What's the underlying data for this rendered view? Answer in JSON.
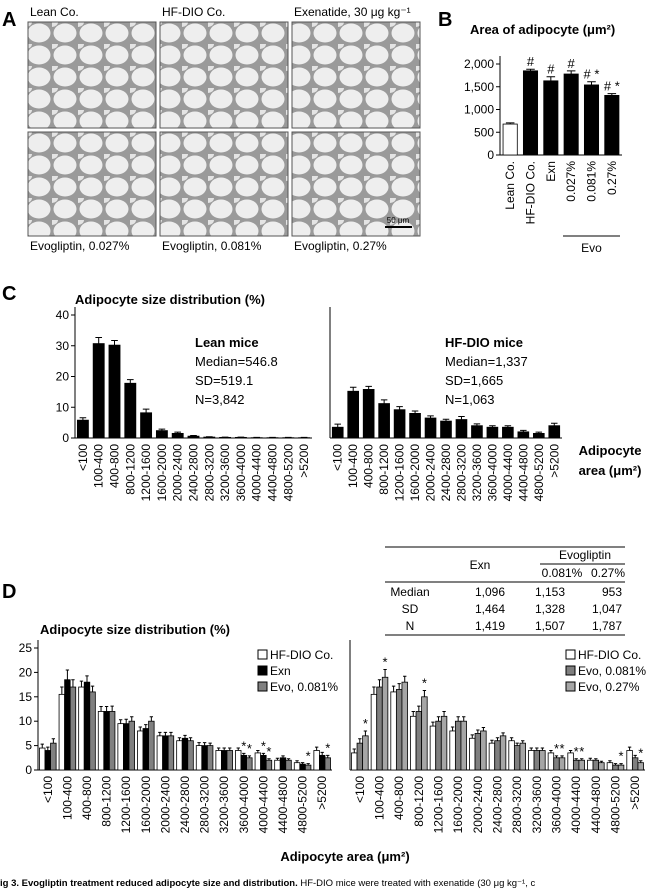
{
  "panel_labels": [
    "A",
    "B",
    "C",
    "D"
  ],
  "micrographs": {
    "labels": [
      "Lean Co.",
      "HF-DIO Co.",
      "Exenatide, 30 μg kg⁻¹",
      "Evogliptin, 0.027%",
      "Evogliptin, 0.081%",
      "Evogliptin, 0.27%"
    ],
    "scale_bar": "50 μm"
  },
  "chart_data": [
    {
      "type": "bar",
      "title": "Area of adipocyte (μm²)",
      "categories": [
        "Lean Co.",
        "HF-DIO Co.",
        "Exn",
        "0.027%",
        "0.081%",
        "0.27%"
      ],
      "values": [
        680,
        1850,
        1630,
        1780,
        1540,
        1310
      ],
      "errors": [
        25,
        35,
        90,
        70,
        70,
        40
      ],
      "colors": [
        "#ffffff",
        "#000000",
        "#000000",
        "#000000",
        "#000000",
        "#000000"
      ],
      "markers": [
        null,
        "#",
        "#",
        "#",
        "# *",
        "# *"
      ],
      "group_label": "Evo",
      "ylim": [
        0,
        2000
      ],
      "yticks": [
        0,
        500,
        {
          "value": 1000,
          "label": "1,000"
        },
        {
          "value": 1500,
          "label": "1,500"
        },
        {
          "value": 2000,
          "label": "2,000"
        }
      ]
    },
    {
      "type": "bar",
      "ylabel": "Adipocyte size distribution (%)",
      "categories": [
        "<100",
        "100-400",
        "400-800",
        "800-1200",
        "1200-1600",
        "1600-2000",
        "2000-2400",
        "2400-2800",
        "2800-3200",
        "3200-3600",
        "3600-4000",
        "4000-4400",
        "4400-4800",
        "4800-5200",
        ">5200"
      ],
      "values": [
        5.8,
        30.7,
        30.2,
        17.8,
        8.2,
        2.4,
        1.5,
        0.6,
        0.3,
        0.2,
        0.2,
        0.1,
        0.1,
        0.1,
        0.1
      ],
      "errors": [
        0.8,
        2,
        1.5,
        1.2,
        1.2,
        0.5,
        0.4,
        0.2,
        0.1,
        0.1,
        0.1,
        0.1,
        0.1,
        0.1,
        0.1
      ],
      "color": "#000000",
      "annotations": [
        "Lean mice",
        "Median=546.8",
        "SD=519.1",
        "N=3,842"
      ],
      "ylim": [
        0,
        40
      ],
      "yticks": [
        0,
        10,
        20,
        30,
        40
      ]
    },
    {
      "type": "bar",
      "xlabel": [
        "Adipocyte",
        "area (μm²)"
      ],
      "categories": [
        "<100",
        "100-400",
        "400-800",
        "800-1200",
        "1200-1600",
        "1600-2000",
        "2000-2400",
        "2400-2800",
        "2800-3200",
        "3200-3600",
        "3600-4000",
        "4000-4400",
        "4400-4800",
        "4800-5200",
        ">5200"
      ],
      "values": [
        3.5,
        15.2,
        15.8,
        11.2,
        9.2,
        8.0,
        6.5,
        5.5,
        6.0,
        4.0,
        3.5,
        3.5,
        2.0,
        1.5,
        4.0
      ],
      "errors": [
        1,
        1.3,
        1,
        1.2,
        1,
        0.8,
        0.7,
        0.6,
        1,
        0.6,
        0.5,
        0.5,
        0.5,
        0.4,
        0.8
      ],
      "color": "#000000",
      "annotations": [
        "HF-DIO mice",
        "Median=1,337",
        "SD=1,665",
        "N=1,063"
      ],
      "ylim": [
        0,
        40
      ]
    },
    {
      "type": "bar",
      "ylabel": "Adipocyte size distribution (%)",
      "categories": [
        "<100",
        "100-400",
        "400-800",
        "800-1200",
        "1200-1600",
        "1600-2000",
        "2000-2400",
        "2400-2800",
        "2800-3200",
        "3200-3600",
        "3600-4000",
        "4000-4400",
        "4400-4800",
        "4800-5200",
        ">5200"
      ],
      "series": [
        {
          "name": "HF-DIO Co.",
          "color": "#ffffff",
          "values": [
            4.5,
            15.5,
            17,
            12,
            9.5,
            8,
            7,
            6,
            5,
            4,
            4,
            3.5,
            2,
            1.5,
            4
          ],
          "errors": [
            0.8,
            1.5,
            1.2,
            1,
            0.8,
            0.8,
            0.7,
            0.6,
            0.6,
            0.5,
            0.5,
            0.5,
            0.4,
            0.4,
            0.7
          ],
          "markers": [
            null,
            null,
            null,
            null,
            null,
            null,
            null,
            null,
            null,
            null,
            null,
            null,
            null,
            null,
            null
          ]
        },
        {
          "name": "Exn",
          "color": "#000000",
          "values": [
            4,
            18.5,
            18,
            12,
            9.5,
            8.5,
            7,
            6.5,
            5,
            4,
            3,
            3,
            2.5,
            1.2,
            3
          ],
          "errors": [
            0.7,
            2,
            1.3,
            1,
            0.9,
            0.8,
            0.7,
            0.6,
            0.6,
            0.5,
            0.4,
            0.4,
            0.4,
            0.3,
            0.6
          ],
          "markers": [
            null,
            null,
            null,
            null,
            null,
            null,
            null,
            null,
            null,
            null,
            "*",
            "*",
            null,
            null,
            null
          ]
        },
        {
          "name": "Evo, 0.081%",
          "color": "#808080",
          "values": [
            5.5,
            17,
            16,
            12,
            10,
            10,
            7,
            6,
            5,
            4,
            2.5,
            2,
            2,
            1,
            2.5
          ],
          "errors": [
            0.9,
            1.5,
            1.2,
            1.1,
            0.9,
            0.9,
            0.7,
            0.6,
            0.5,
            0.5,
            0.4,
            0.3,
            0.3,
            0.3,
            0.5
          ],
          "markers": [
            null,
            null,
            null,
            null,
            null,
            null,
            null,
            null,
            null,
            null,
            "*",
            "*",
            null,
            "*",
            "*"
          ]
        }
      ],
      "ylim": [
        0,
        25
      ],
      "yticks": [
        0,
        5,
        10,
        15,
        20,
        25
      ]
    },
    {
      "type": "bar",
      "xlabel": [
        "Adipocyte area (μm²)"
      ],
      "categories": [
        "<100",
        "100-400",
        "400-800",
        "800-1200",
        "1200-1600",
        "1600-2000",
        "2000-2400",
        "2400-2800",
        "2800-3200",
        "3200-3600",
        "3600-4000",
        "4000-4400",
        "4400-4800",
        "4800-5200",
        ">5200"
      ],
      "series": [
        {
          "name": "HF-DIO Co.",
          "color": "#ffffff",
          "values": [
            3.5,
            15.5,
            16,
            11,
            9,
            8,
            6.5,
            5.5,
            6,
            4,
            3.5,
            3.5,
            2,
            1.5,
            4
          ],
          "errors": [
            0.8,
            1.5,
            1.2,
            1,
            0.8,
            0.8,
            0.7,
            0.6,
            0.6,
            0.5,
            0.5,
            0.5,
            0.4,
            0.4,
            0.7
          ],
          "markers": [
            null,
            null,
            null,
            null,
            null,
            null,
            null,
            null,
            null,
            null,
            null,
            null,
            null,
            null,
            null
          ]
        },
        {
          "name": "Evo, 0.081%",
          "color": "#7f7f7f",
          "values": [
            5.5,
            17,
            16.5,
            12,
            10,
            10,
            7.5,
            6,
            5,
            4,
            2.5,
            2,
            2,
            1,
            2.5
          ],
          "errors": [
            0.9,
            1.5,
            1.2,
            1.1,
            0.9,
            0.9,
            0.7,
            0.6,
            0.5,
            0.5,
            0.4,
            0.3,
            0.3,
            0.3,
            0.5
          ],
          "markers": [
            null,
            null,
            null,
            null,
            null,
            null,
            null,
            null,
            null,
            null,
            "*",
            "*",
            null,
            null,
            null
          ]
        },
        {
          "name": "Evo, 0.27%",
          "color": "#a6a6a6",
          "values": [
            7,
            19,
            18,
            15,
            11,
            10,
            8,
            7,
            5.5,
            4,
            2.5,
            2,
            1.5,
            1,
            1.5
          ],
          "errors": [
            1,
            1.6,
            1.2,
            1.3,
            1,
            0.9,
            0.7,
            0.6,
            0.5,
            0.5,
            0.4,
            0.3,
            0.3,
            0.3,
            0.4
          ],
          "markers": [
            "*",
            "*",
            null,
            "*",
            null,
            null,
            null,
            null,
            null,
            null,
            "*",
            "*",
            null,
            "*",
            "*"
          ]
        }
      ],
      "ylim": [
        0,
        25
      ]
    }
  ],
  "table": {
    "header": [
      "Exn",
      "Evogliptin"
    ],
    "subheader": [
      "0.081%",
      "0.27%"
    ],
    "rows": [
      [
        "Median",
        "1,096",
        "1,153",
        "953"
      ],
      [
        "SD",
        "1,464",
        "1,328",
        "1,047"
      ],
      [
        "N",
        "1,419",
        "1,507",
        "1,787"
      ]
    ]
  },
  "caption": {
    "bold": "ig 3. Evogliptin treatment reduced adipocyte size and distribution.",
    "text": " HF-DIO mice were treated with exenatide (30 μg kg⁻¹, c"
  }
}
